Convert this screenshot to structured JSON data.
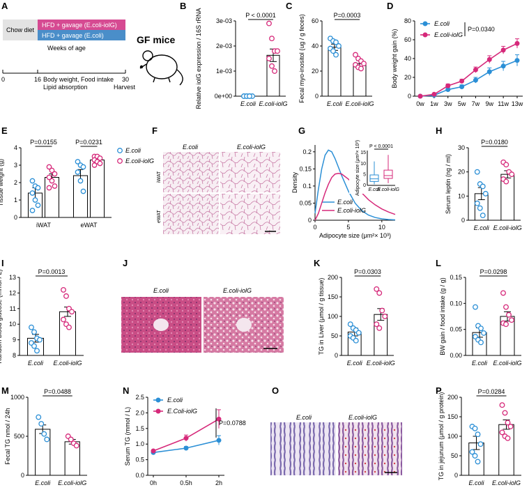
{
  "colors": {
    "blue": "#2b8fd6",
    "pink": "#d6297a",
    "panelPink": "#d64a92",
    "panelBlue": "#4a8ec9",
    "chowGray": "#e3e3e3",
    "histoPink": "#d98fb5",
    "liverPink": "#c4407a",
    "jejunumPurple": "#8b7bb5"
  },
  "panelA": {
    "letter": "A",
    "chow": "Chow diet",
    "hfdIolg": "HFD + gavage (E.coli-iolG)",
    "hfdEcoli": "HFD + gavage (E.coli)",
    "weeks": "Weeks of age",
    "ticks": [
      "0",
      "16",
      "30"
    ],
    "note1": "Body weight, Food intake",
    "note2": "Lipid absorption",
    "harvest": "Harvest",
    "gf": "GF mice"
  },
  "panelF": {
    "letter": "F",
    "cols": [
      "E.coli",
      "E.coli-iolG"
    ],
    "rows": [
      "iWAT",
      "eWAT"
    ]
  },
  "panelJ": {
    "letter": "J",
    "cols": [
      "E.coli",
      "E.coli-iolG"
    ]
  },
  "panelO": {
    "letter": "O",
    "cols": [
      "E.coli",
      "E.coli-iolG"
    ]
  },
  "chart_data": [
    {
      "id": "B",
      "type": "bar",
      "title": "",
      "ylabel": "Relative iolG expression / 16S rRNA",
      "categories": [
        "E.coli",
        "E.coli-iolG"
      ],
      "values": [
        0,
        0.00163
      ],
      "sem": [
        0,
        0.00025
      ],
      "points": [
        [
          0,
          0,
          0,
          0,
          0,
          0,
          0
        ],
        [
          0.0029,
          0.0023,
          0.0018,
          0.0018,
          0.0015,
          0.0012,
          0.001
        ]
      ],
      "ylim": [
        0,
        0.003
      ],
      "yticks": [
        "0e+00",
        "1e-03",
        "2e-03",
        "3e-03"
      ],
      "ytickvals": [
        0,
        0.001,
        0.002,
        0.003
      ],
      "pval": "P < 0.0001"
    },
    {
      "id": "C",
      "type": "bar",
      "ylabel": "Fecal myo-inositol (ug / g feces)",
      "categories": [
        "E.coli",
        "E.coli-iolG"
      ],
      "values": [
        39,
        26
      ],
      "sem": [
        2.5,
        2.5
      ],
      "points": [
        [
          46,
          44,
          43,
          40,
          38,
          36,
          33
        ],
        [
          33,
          30,
          28,
          26,
          25,
          23,
          22
        ]
      ],
      "ylim": [
        0,
        60
      ],
      "yticks": [
        "0",
        "20",
        "40",
        "60"
      ],
      "ytickvals": [
        0,
        20,
        40,
        60
      ],
      "pval": "P=0.0003"
    },
    {
      "id": "D",
      "type": "line",
      "ylabel": "Body weight gain (%)",
      "categories": [
        "0w",
        "1w",
        "3w",
        "5w",
        "7w",
        "9w",
        "11w",
        "13w"
      ],
      "series": [
        {
          "name": "E.coli",
          "values": [
            0,
            1,
            7,
            10,
            17,
            26,
            32,
            38
          ],
          "sem": [
            0,
            1,
            2,
            2,
            3,
            4,
            5,
            6
          ]
        },
        {
          "name": "E.coli-iolG",
          "values": [
            0,
            2,
            11,
            16,
            28,
            39,
            49,
            56
          ],
          "sem": [
            0,
            1,
            2,
            2,
            3,
            4,
            4,
            5
          ]
        }
      ],
      "ylim": [
        0,
        80
      ],
      "yticks": [
        "0",
        "20",
        "40",
        "60",
        "80"
      ],
      "ytickvals": [
        0,
        20,
        40,
        60,
        80
      ],
      "pval": "P=0.0340"
    },
    {
      "id": "E",
      "type": "bar",
      "ylabel": "Tissue weight (g)",
      "groups": [
        "iWAT",
        "eWAT"
      ],
      "series": [
        {
          "name": "E.coli",
          "values": [
            1.4,
            2.4
          ],
          "sem": [
            0.3,
            0.35
          ],
          "points": [
            [
              2.1,
              1.8,
              1.7,
              1.4,
              1.0,
              0.7,
              0.4
            ],
            [
              3.2,
              3.0,
              2.9,
              2.6,
              2.1,
              1.5
            ]
          ]
        },
        {
          "name": "E.coli-iolG",
          "values": [
            2.3,
            3.3
          ],
          "sem": [
            0.2,
            0.15
          ],
          "points": [
            [
              2.9,
              2.7,
              2.5,
              2.3,
              2.1,
              1.8,
              1.7
            ],
            [
              3.5,
              3.5,
              3.4,
              3.3,
              3.2,
              3.1,
              3.0
            ]
          ]
        }
      ],
      "ylim": [
        0,
        4
      ],
      "yticks": [
        "0",
        "1",
        "2",
        "3",
        "4"
      ],
      "ytickvals": [
        0,
        1,
        2,
        3,
        4
      ],
      "pvals": [
        "P=0.0155",
        "P=0.0231"
      ]
    },
    {
      "id": "G",
      "type": "line",
      "ylabel": "Density",
      "xlabel": "Adipocyte size (μm²× 10³)",
      "ylim": [
        0,
        0.22
      ],
      "xlim": [
        0,
        12
      ],
      "yticks": [
        "0",
        "0.05",
        "0.1",
        "0.15",
        "0.2"
      ],
      "ytickvals": [
        0,
        0.05,
        0.1,
        0.15,
        0.2
      ],
      "xticks": [
        "0",
        "5",
        "10"
      ],
      "xtickvals": [
        0,
        5,
        10
      ],
      "series": [
        {
          "name": "E.coli",
          "x": [
            0,
            0.5,
            1,
            1.5,
            2,
            2.5,
            3,
            3.5,
            4,
            5,
            6,
            7,
            8,
            9,
            10,
            11,
            12
          ],
          "y": [
            0.02,
            0.09,
            0.15,
            0.19,
            0.205,
            0.2,
            0.18,
            0.155,
            0.13,
            0.085,
            0.05,
            0.028,
            0.015,
            0.008,
            0.004,
            0.002,
            0.001
          ]
        },
        {
          "name": "E.coli-iolG",
          "x": [
            0,
            0.5,
            1,
            1.5,
            2,
            2.5,
            3,
            3.5,
            4,
            5,
            6,
            7,
            8,
            9,
            10,
            11,
            12
          ],
          "y": [
            0.0,
            0.02,
            0.05,
            0.08,
            0.105,
            0.125,
            0.135,
            0.137,
            0.135,
            0.12,
            0.1,
            0.08,
            0.06,
            0.045,
            0.033,
            0.024,
            0.017
          ]
        }
      ],
      "inset": {
        "type": "boxplot",
        "ylabel": "Adipocyte size (μm²× 10³)",
        "categories": [
          "E.coli",
          "E.coli-iolG"
        ],
        "yticks": [
          "0",
          "5",
          "10",
          "15"
        ],
        "ytickvals": [
          0,
          5,
          10,
          15
        ],
        "ylim": [
          0,
          16
        ],
        "boxes": [
          [
            0.5,
            1.8,
            3,
            4.8,
            11
          ],
          [
            1,
            3.2,
            4.5,
            7,
            14
          ]
        ],
        "pval": "P < 0.0001"
      }
    },
    {
      "id": "H",
      "type": "bar",
      "ylabel": "Serum leptin (ng / ml)",
      "categories": [
        "E.coli",
        "E.coli-iolG"
      ],
      "values": [
        11,
        19
      ],
      "sem": [
        2.5,
        1.5
      ],
      "points": [
        [
          20,
          15,
          14,
          11,
          7,
          5,
          2
        ],
        [
          24,
          23,
          20,
          19,
          17,
          16
        ]
      ],
      "ylim": [
        0,
        30
      ],
      "yticks": [
        "0",
        "10",
        "20",
        "30"
      ],
      "ytickvals": [
        0,
        10,
        20,
        30
      ],
      "pval": "P=0.0180"
    },
    {
      "id": "I",
      "type": "bar",
      "ylabel": "Random blood glucose (mmol / L)",
      "categories": [
        "E.coli",
        "E.coli-iolG"
      ],
      "values": [
        9.1,
        10.8
      ],
      "sem": [
        0.25,
        0.3
      ],
      "points": [
        [
          9.8,
          9.5,
          9.1,
          9.0,
          8.8,
          8.6,
          8.3
        ],
        [
          12.2,
          11.8,
          11.0,
          10.8,
          10.3,
          10.0,
          9.8
        ]
      ],
      "ylim": [
        8,
        13
      ],
      "yticks": [
        "8",
        "9",
        "10",
        "11",
        "12",
        "13"
      ],
      "ytickvals": [
        8,
        9,
        10,
        11,
        12,
        13
      ],
      "pval": "P=0.0013"
    },
    {
      "id": "K",
      "type": "bar",
      "ylabel": "TG in Liver (μmol / g tissue)",
      "categories": [
        "E.coli",
        "E.coli-iolG"
      ],
      "values": [
        60,
        105
      ],
      "sem": [
        10,
        15
      ],
      "points": [
        [
          80,
          70,
          65,
          58,
          50,
          45,
          38
        ],
        [
          170,
          160,
          115,
          100,
          80,
          70
        ]
      ],
      "ylim": [
        0,
        200
      ],
      "yticks": [
        "0",
        "50",
        "100",
        "150",
        "200"
      ],
      "ytickvals": [
        0,
        50,
        100,
        150,
        200
      ],
      "pval": "P=0.0303"
    },
    {
      "id": "L",
      "type": "bar",
      "ylabel": "BW gain / food intake (g / g)",
      "categories": [
        "E.coli",
        "E.coli-iolG"
      ],
      "values": [
        0.044,
        0.075
      ],
      "sem": [
        0.009,
        0.009
      ],
      "points": [
        [
          0.093,
          0.057,
          0.052,
          0.043,
          0.036,
          0.03,
          0.025
        ],
        [
          0.12,
          0.093,
          0.078,
          0.068,
          0.062,
          0.06
        ]
      ],
      "ylim": [
        0,
        0.15
      ],
      "yticks": [
        "0.00",
        "0.05",
        "0.10",
        "0.15"
      ],
      "ytickvals": [
        0,
        0.05,
        0.1,
        0.15
      ],
      "pval": "P=0.0298"
    },
    {
      "id": "M",
      "type": "bar",
      "ylabel": "Fecal TG nmol / 24h",
      "categories": [
        "E.coli",
        "E.coli-iolG"
      ],
      "values": [
        590,
        430
      ],
      "sem": [
        55,
        30
      ],
      "points": [
        [
          745,
          660,
          530,
          460
        ],
        [
          500,
          460,
          410,
          380
        ]
      ],
      "ylim": [
        0,
        1000
      ],
      "yticks": [
        "0",
        "500",
        "1000"
      ],
      "ytickvals": [
        0,
        500,
        1000
      ],
      "pval": "P=0.0488"
    },
    {
      "id": "N",
      "type": "line",
      "ylabel": "Serum TG (mmol / L)",
      "categories": [
        "0h",
        "0.5h",
        "2h"
      ],
      "series": [
        {
          "name": "E.coli",
          "values": [
            0.73,
            0.87,
            1.12
          ],
          "sem": [
            0.04,
            0.05,
            0.15
          ]
        },
        {
          "name": "E.Coli-iolG",
          "values": [
            0.78,
            1.19,
            1.8
          ],
          "sem": [
            0.04,
            0.1,
            0.3
          ]
        }
      ],
      "ylim": [
        0,
        2.5
      ],
      "yticks": [
        "0.0",
        "0.5",
        "1.0",
        "1.5",
        "2.0",
        "2.5"
      ],
      "ytickvals": [
        0,
        0.5,
        1,
        1.5,
        2,
        2.5
      ],
      "pval": "P=0.0788"
    },
    {
      "id": "P",
      "type": "bar",
      "ylabel": "TG in jejunum (μmol / g protein)",
      "categories": [
        "E.coli",
        "E.coli-iolG"
      ],
      "values": [
        83,
        130
      ],
      "sem": [
        17,
        12
      ],
      "points": [
        [
          125,
          120,
          105,
          80,
          60,
          50,
          35
        ],
        [
          180,
          160,
          135,
          125,
          110,
          100,
          95
        ]
      ],
      "ylim": [
        0,
        200
      ],
      "yticks": [
        "0",
        "50",
        "100",
        "150",
        "200"
      ],
      "ytickvals": [
        0,
        50,
        100,
        150,
        200
      ],
      "pval": "P=0.0284"
    }
  ]
}
